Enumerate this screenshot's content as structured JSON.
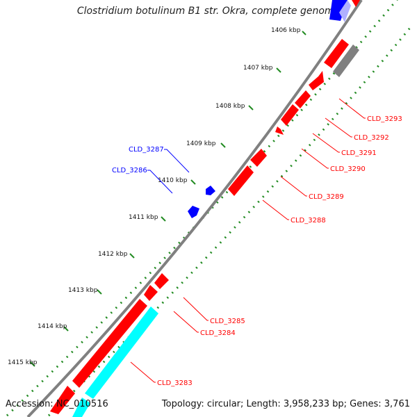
{
  "title": "Clostridium botulinum B1 str. Okra, complete genome",
  "footer": {
    "accession": "Accession: NC_010516",
    "summary": "Topology: circular; Length: 3,958,233 bp; Genes: 3,761"
  },
  "colors": {
    "backbone": "#808080",
    "forward_gene": "#ff0000",
    "reverse_gene": "#0000ff",
    "rRNA_like": "#00ffff",
    "other_feature": "#808080",
    "gc_dots": "#228b22"
  },
  "ticks": [
    "1406 kbp",
    "1407 kbp",
    "1408 kbp",
    "1409 kbp",
    "1410 kbp",
    "1411 kbp",
    "1412 kbp",
    "1413 kbp",
    "1414 kbp",
    "1415 kbp"
  ],
  "gene_labels_forward": [
    "CLD_3293",
    "CLD_3292",
    "CLD_3291",
    "CLD_3290",
    "CLD_3289",
    "CLD_3288",
    "CLD_3285",
    "CLD_3284",
    "CLD_3283"
  ],
  "gene_labels_reverse": [
    "CLD_3287",
    "CLD_3286"
  ]
}
